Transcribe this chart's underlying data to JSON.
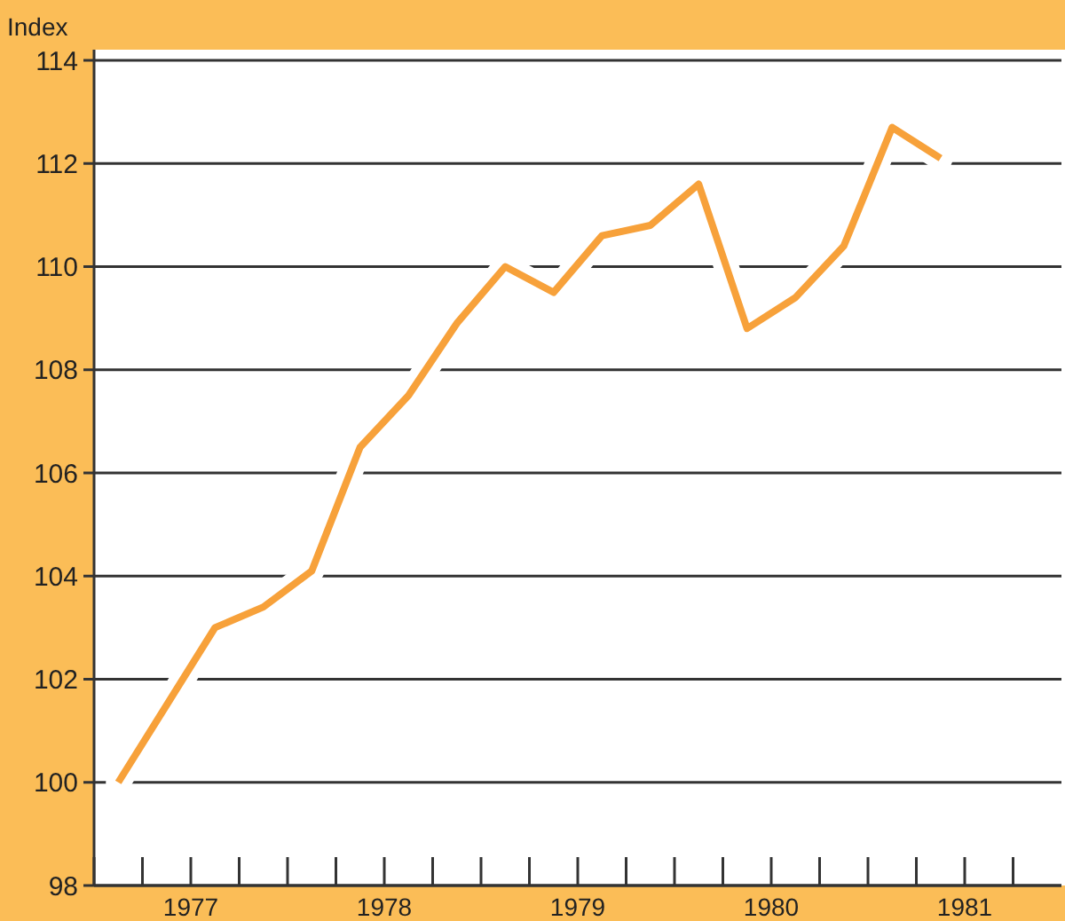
{
  "chart_data": {
    "type": "line",
    "ylabel": "Index",
    "x": [
      1977.125,
      1977.375,
      1977.625,
      1977.875,
      1978.125,
      1978.375,
      1978.625,
      1978.875,
      1979.125,
      1979.375,
      1979.625,
      1979.875,
      1980.125,
      1980.375,
      1980.625,
      1980.875,
      1981.125,
      1981.375
    ],
    "series": [
      {
        "color": "#f7a13a",
        "values": [
          100,
          101.5,
          103,
          103.4,
          104.1,
          106.5,
          107.5,
          108.9,
          110,
          109.5,
          110.6,
          110.8,
          111.6,
          108.8,
          109.4,
          110.4,
          112.7,
          112.1
        ]
      }
    ],
    "xlim": [
      1977,
      1982
    ],
    "xticks": [
      {
        "value": 1977,
        "label": null
      },
      {
        "value": 1977.25,
        "label": null
      },
      {
        "value": 1977.5,
        "label": "1977"
      },
      {
        "value": 1977.75,
        "label": null
      },
      {
        "value": 1978,
        "label": null
      },
      {
        "value": 1978.25,
        "label": null
      },
      {
        "value": 1978.5,
        "label": "1978"
      },
      {
        "value": 1978.75,
        "label": null
      },
      {
        "value": 1979,
        "label": null
      },
      {
        "value": 1979.25,
        "label": null
      },
      {
        "value": 1979.5,
        "label": "1979"
      },
      {
        "value": 1979.75,
        "label": null
      },
      {
        "value": 1980,
        "label": null
      },
      {
        "value": 1980.25,
        "label": null
      },
      {
        "value": 1980.5,
        "label": "1980"
      },
      {
        "value": 1980.75,
        "label": null
      },
      {
        "value": 1981,
        "label": null
      },
      {
        "value": 1981.25,
        "label": null
      },
      {
        "value": 1981.5,
        "label": "1981"
      },
      {
        "value": 1981.75,
        "label": null
      }
    ],
    "ylim": [
      98,
      114
    ],
    "yticks": [
      98,
      100,
      102,
      104,
      106,
      108,
      110,
      112,
      114
    ],
    "grid": "y",
    "marker": "none",
    "line_style": "solid"
  }
}
